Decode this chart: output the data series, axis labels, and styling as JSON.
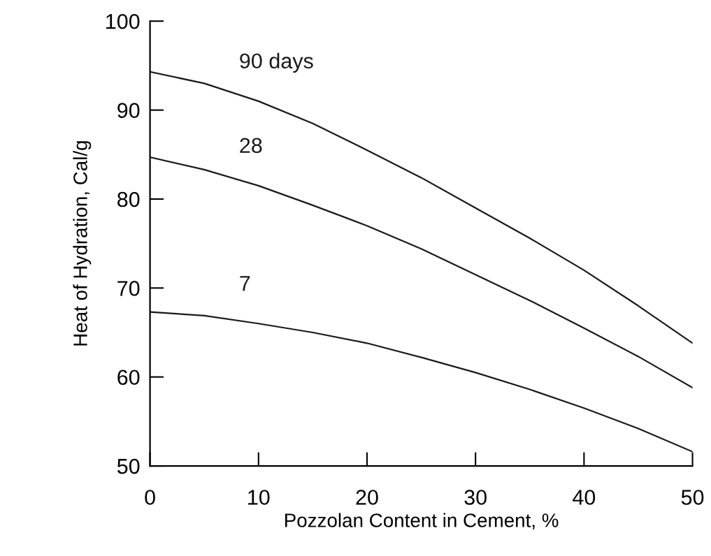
{
  "chart_data": {
    "type": "line",
    "xlabel": "Pozzolan Content in Cement, %",
    "ylabel": "Heat of Hydration, Cal/g",
    "x": [
      0,
      5,
      10,
      15,
      20,
      25,
      30,
      35,
      40,
      45,
      50
    ],
    "series": [
      {
        "name": "90 days",
        "color": "#1a1a1a",
        "values": [
          94.3,
          93,
          91,
          88.5,
          85.5,
          82.4,
          79,
          75.6,
          72,
          68,
          63.8
        ]
      },
      {
        "name": "28",
        "color": "#1a1a1a",
        "values": [
          84.7,
          83.3,
          81.5,
          79.3,
          77,
          74.4,
          71.5,
          68.6,
          65.5,
          62.3,
          58.8
        ]
      },
      {
        "name": "7",
        "color": "#1a1a1a",
        "values": [
          67.3,
          66.9,
          66,
          65,
          63.8,
          62.2,
          60.5,
          58.6,
          56.5,
          54.2,
          51.6
        ]
      }
    ],
    "xlim": [
      0,
      50
    ],
    "xticks": [
      0,
      10,
      20,
      30,
      40,
      50
    ],
    "ylim": [
      50,
      100
    ],
    "yticks": [
      50,
      60,
      70,
      80,
      90,
      100
    ],
    "grid": false,
    "legend": false,
    "marker": "none",
    "line_style": "solid"
  }
}
